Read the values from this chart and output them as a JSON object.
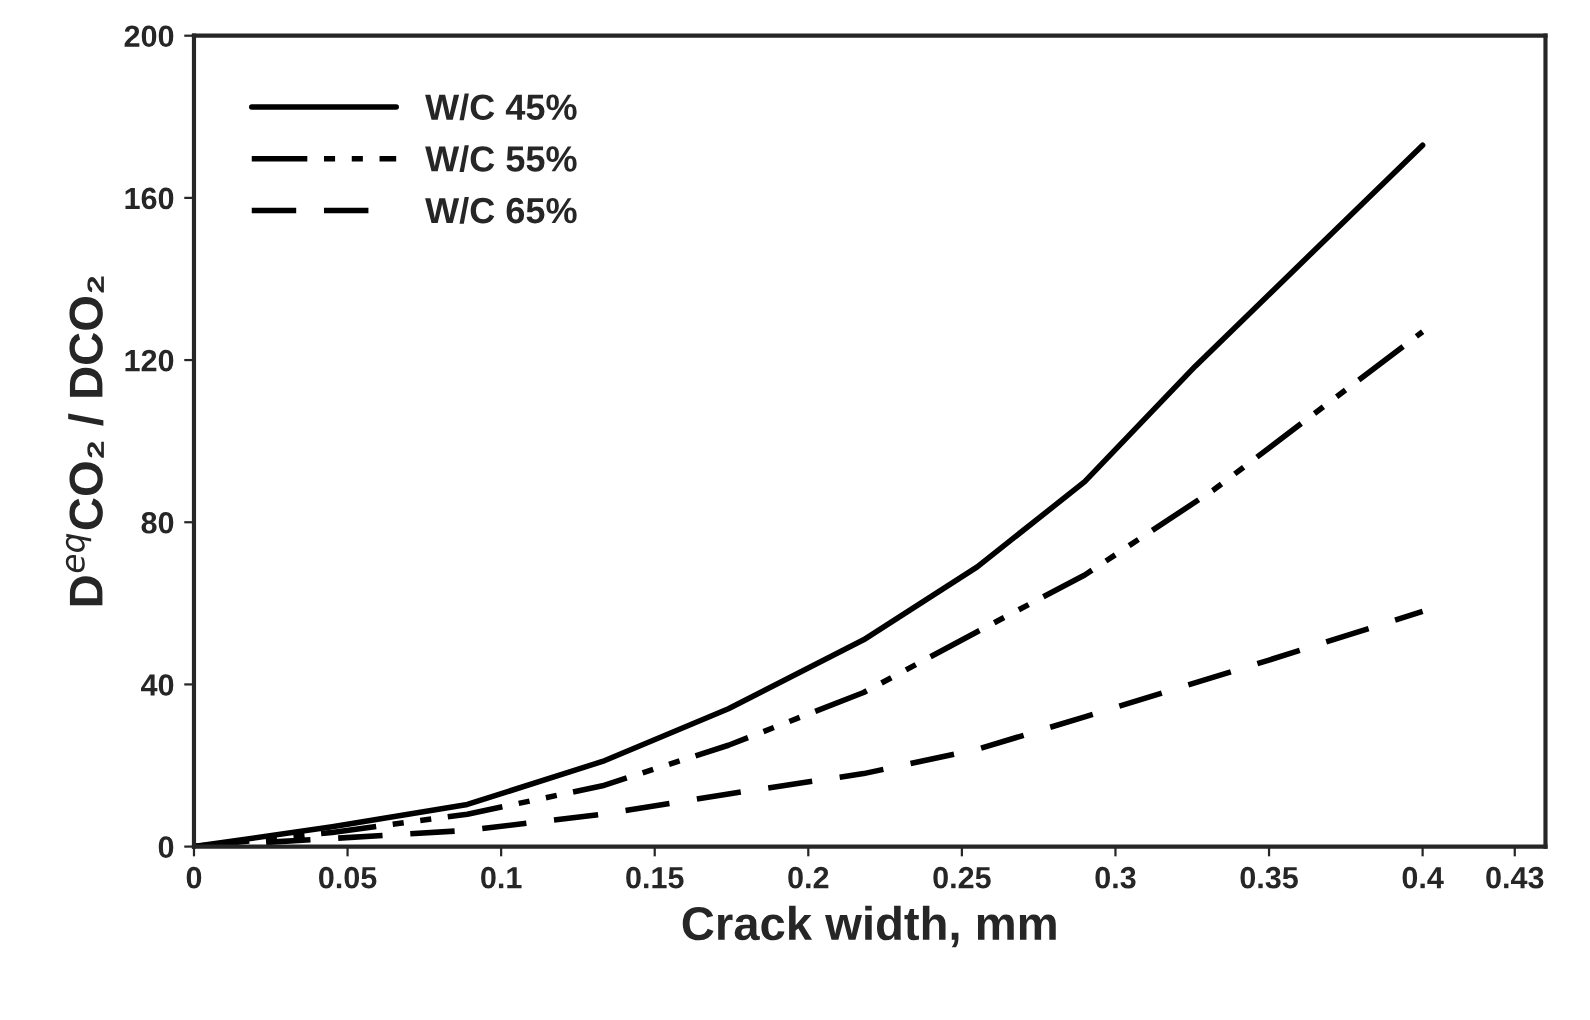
{
  "chart_data": {
    "type": "line",
    "xlabel": "Crack width, mm",
    "ylabel": "D$^{eq}$CO₂ / DCO₂",
    "xlim": [
      0,
      0.44
    ],
    "xticks": [
      0,
      0.05,
      0.1,
      0.15,
      0.2,
      0.25,
      0.3,
      0.35,
      0.4,
      0.43
    ],
    "ylim": [
      0,
      200
    ],
    "yticks": [
      0,
      40,
      80,
      120,
      160,
      200
    ],
    "grid": false,
    "legend": "top left",
    "marker": "none",
    "series": [
      {
        "name": "W/C 45%",
        "color": "#000000",
        "line_style": "solid",
        "x": [
          0,
          0.045,
          0.089,
          0.133,
          0.174,
          0.218,
          0.255,
          0.29,
          0.326,
          0.4
        ],
        "values": [
          0,
          4.9,
          10.4,
          21,
          34,
          51,
          69,
          90,
          118.5,
          173
        ]
      },
      {
        "name": "W/C 55%",
        "color": "#000000",
        "line_style": "dashdot",
        "x": [
          0,
          0.045,
          0.089,
          0.133,
          0.174,
          0.218,
          0.255,
          0.29,
          0.332,
          0.4
        ],
        "values": [
          0,
          3.5,
          8,
          15,
          25,
          38,
          53,
          67,
          88,
          127
        ]
      },
      {
        "name": "W/C 65%",
        "color": "#000000",
        "line_style": "dashed",
        "x": [
          0,
          0.045,
          0.089,
          0.133,
          0.174,
          0.218,
          0.255,
          0.29,
          0.35,
          0.4
        ],
        "values": [
          0,
          2,
          4,
          8,
          13,
          18,
          24,
          32,
          46,
          58
        ]
      }
    ]
  }
}
